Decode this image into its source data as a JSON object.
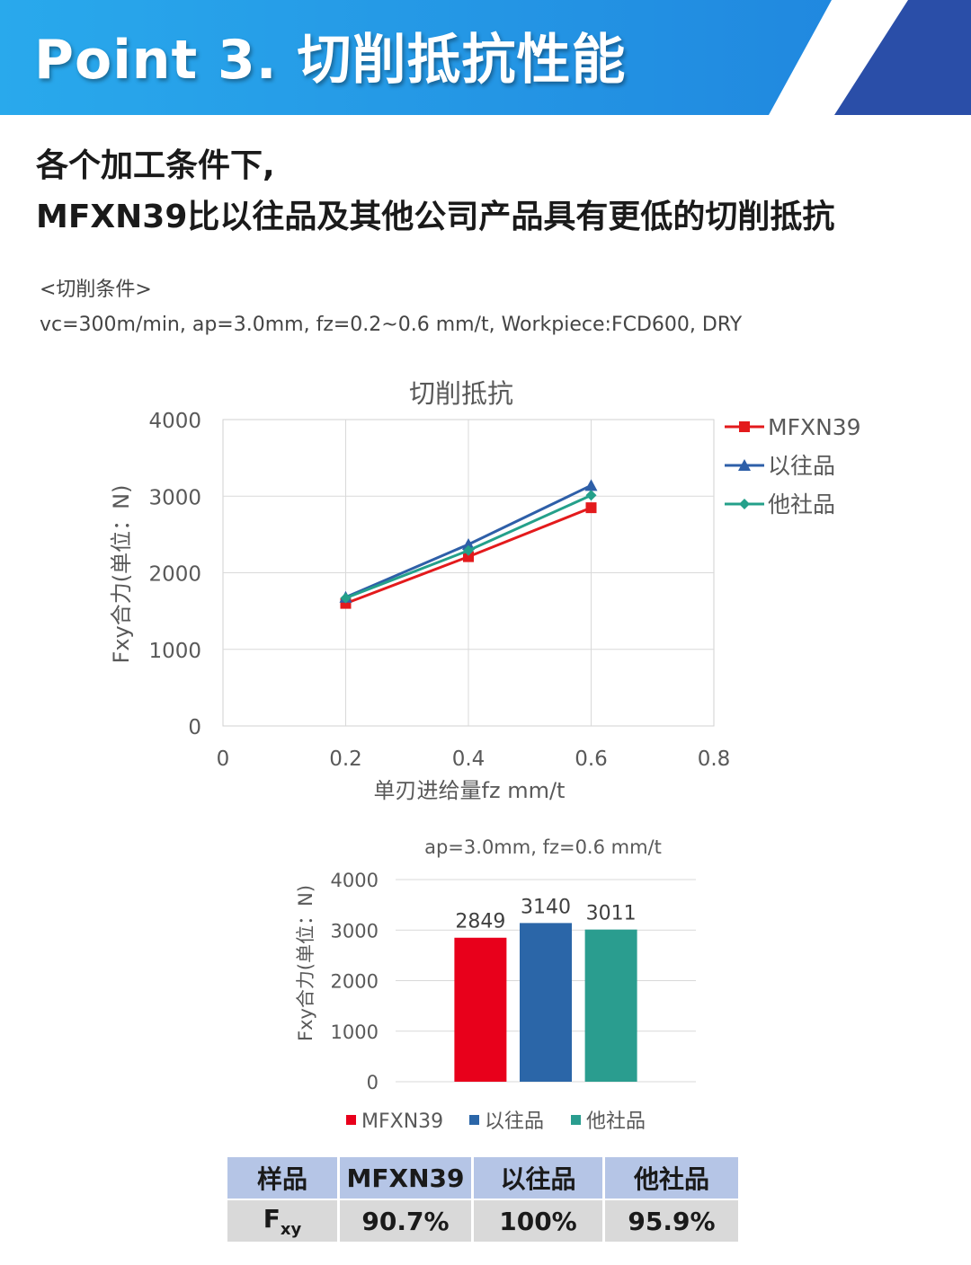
{
  "banner": {
    "title": "Point 3. 切削抵抗性能"
  },
  "headline": {
    "line1": "各个加工条件下,",
    "line2": "MFXN39比以往品及其他公司产品具有更低的切削抵抗"
  },
  "conditions": {
    "label": "<切削条件>",
    "text": "vc=300m/min, ap=3.0mm, fz=0.2~0.6 mm/t, Workpiece:FCD600, DRY"
  },
  "colors": {
    "MFXN39": "#e8001b",
    "以往品": "#2b66a8",
    "他社品": "#2a9d8f",
    "line_MFXN39": "#e31a1c",
    "line_以往品": "#2e5fa8",
    "line_他社品": "#24a08a",
    "banner_blue": "#1a8fe0",
    "banner_dark": "#2a4ea8",
    "table_header": "#b5c5e6",
    "table_body": "#d9d9d9"
  },
  "chart_data": [
    {
      "type": "line",
      "title": "切削抵抗",
      "xlabel": "单刃进给量fz  mm/t",
      "ylabel": "Fxy合力(单位：N)",
      "xlim": [
        0,
        0.8
      ],
      "ylim": [
        0,
        4000
      ],
      "xticks": [
        "0",
        "0.2",
        "0.4",
        "0.6",
        "0.8"
      ],
      "yticks": [
        "0",
        "1000",
        "2000",
        "3000",
        "4000"
      ],
      "x": [
        0.2,
        0.4,
        0.6
      ],
      "series": [
        {
          "name": "MFXN39",
          "marker": "square",
          "values": [
            1600,
            2210,
            2849
          ]
        },
        {
          "name": "以往品",
          "marker": "triangle",
          "values": [
            1680,
            2370,
            3140
          ]
        },
        {
          "name": "他社品",
          "marker": "diamond",
          "values": [
            1670,
            2290,
            3011
          ]
        }
      ],
      "grid": true,
      "legend": "right"
    },
    {
      "type": "bar",
      "title": "ap=3.0mm, fz=0.6 mm/t",
      "ylabel": "Fxy合力(单位：N)",
      "ylim": [
        0,
        4000
      ],
      "yticks": [
        "0",
        "1000",
        "2000",
        "3000",
        "4000"
      ],
      "categories": [
        "MFXN39",
        "以往品",
        "他社品"
      ],
      "values": [
        2849,
        3140,
        3011
      ],
      "data_labels": [
        "2849",
        "3140",
        "3011"
      ],
      "grid": true,
      "legend": "bottom"
    }
  ],
  "table": {
    "header": [
      "样品",
      "MFXN39",
      "以往品",
      "他社品"
    ],
    "row_label_main": "F",
    "row_label_sub": "xy",
    "values": [
      "90.7%",
      "100%",
      "95.9%"
    ]
  }
}
